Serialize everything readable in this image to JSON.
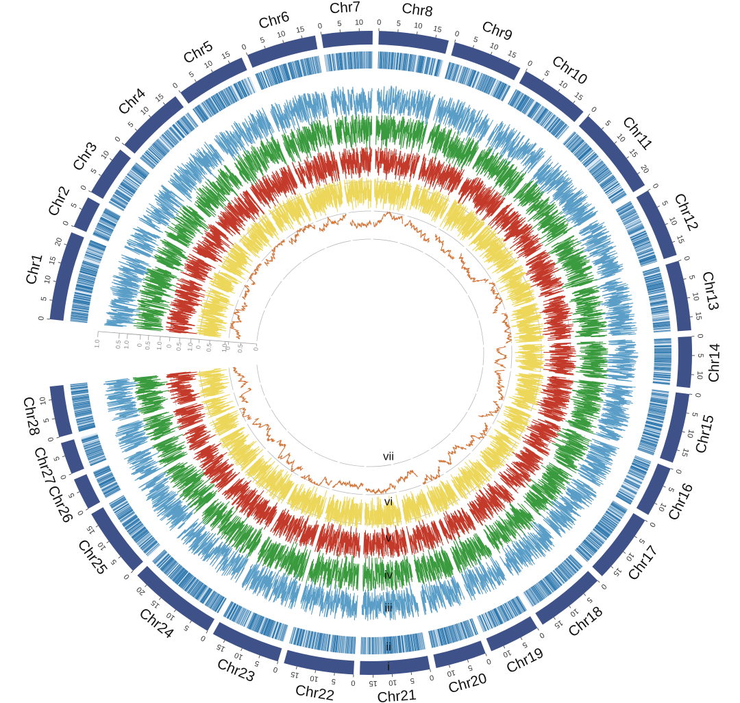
{
  "figure": {
    "chromosomes": [
      {
        "name": "Chr1",
        "ticks": [
          "0",
          "5",
          "10",
          "15",
          "20"
        ]
      },
      {
        "name": "Chr2",
        "ticks": [
          "0",
          "5"
        ]
      },
      {
        "name": "Chr3",
        "ticks": [
          "0",
          "5",
          "10"
        ]
      },
      {
        "name": "Chr4",
        "ticks": [
          "0",
          "5",
          "10",
          "15"
        ]
      },
      {
        "name": "Chr5",
        "ticks": [
          "0",
          "5",
          "10",
          "15"
        ]
      },
      {
        "name": "Chr6",
        "ticks": [
          "0",
          "5",
          "10",
          "15"
        ]
      },
      {
        "name": "Chr7",
        "ticks": [
          "0",
          "5",
          "10"
        ]
      },
      {
        "name": "Chr8",
        "ticks": [
          "0",
          "5",
          "10",
          "15"
        ]
      },
      {
        "name": "Chr9",
        "ticks": [
          "0",
          "5",
          "10",
          "15"
        ]
      },
      {
        "name": "Chr10",
        "ticks": [
          "0",
          "5",
          "10",
          "15"
        ]
      },
      {
        "name": "Chr11",
        "ticks": [
          "0",
          "5",
          "10",
          "15",
          "20"
        ]
      },
      {
        "name": "Chr12",
        "ticks": [
          "0",
          "5",
          "10",
          "15"
        ]
      },
      {
        "name": "Chr13",
        "ticks": [
          "0",
          "5",
          "10",
          "15"
        ]
      },
      {
        "name": "Chr14",
        "ticks": [
          "0",
          "5",
          "10"
        ]
      },
      {
        "name": "Chr15",
        "ticks": [
          "0",
          "5",
          "10",
          "15"
        ]
      },
      {
        "name": "Chr16",
        "ticks": [
          "0",
          "5",
          "10"
        ]
      },
      {
        "name": "Chr17",
        "ticks": [
          "0",
          "5",
          "10",
          "15"
        ]
      },
      {
        "name": "Chr18",
        "ticks": [
          "0",
          "5",
          "10",
          "15"
        ]
      },
      {
        "name": "Chr19",
        "ticks": [
          "0",
          "5",
          "10"
        ]
      },
      {
        "name": "Chr20",
        "ticks": [
          "0",
          "5",
          "10"
        ]
      },
      {
        "name": "Chr21",
        "ticks": [
          "0",
          "5",
          "10",
          "15"
        ]
      },
      {
        "name": "Chr22",
        "ticks": [
          "0",
          "5",
          "10",
          "15"
        ]
      },
      {
        "name": "Chr23",
        "ticks": [
          "0",
          "5",
          "10",
          "15"
        ]
      },
      {
        "name": "Chr24",
        "ticks": [
          "0",
          "5",
          "10",
          "15",
          "20"
        ]
      },
      {
        "name": "Chr25",
        "ticks": [
          "0",
          "5",
          "10",
          "15"
        ]
      },
      {
        "name": "Chr26",
        "ticks": [
          "0",
          "5"
        ]
      },
      {
        "name": "Chr27",
        "ticks": [
          "0",
          "5"
        ]
      },
      {
        "name": "Chr28",
        "ticks": [
          "0",
          "5",
          "10"
        ]
      }
    ],
    "track_labels": [
      "i",
      "ii",
      "iii",
      "iv",
      "v",
      "vi",
      "vii"
    ],
    "track_scales": [
      {
        "ticks": [
          "1.0",
          "0.5",
          "0"
        ]
      },
      {
        "ticks": [
          "1.0",
          "0.5",
          "0"
        ]
      },
      {
        "ticks": [
          "1.0",
          "0.5",
          "0"
        ]
      },
      {
        "ticks": [
          "1.0",
          "0.5",
          "0"
        ]
      },
      {
        "ticks": [
          "1.0",
          "0.5",
          "0"
        ]
      }
    ],
    "colors": {
      "ideogram": "#3e5189",
      "heatmap": "#1f6ea8",
      "track_iii": "#5a9ec8",
      "track_iv": "#3a9a3e",
      "track_v": "#c33a2a",
      "track_vi": "#ecd75a",
      "track_vii": "#d2763a",
      "baseline": "#b8b8b8"
    }
  }
}
